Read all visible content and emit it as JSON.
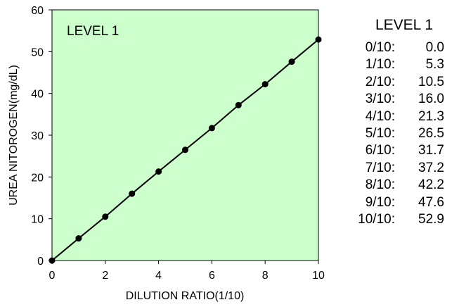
{
  "chart_data": {
    "type": "line",
    "plot_label": "LEVEL 1",
    "xlabel": "DILUTION RATIO(1/10)",
    "ylabel": "UREA NITOROGEN(mg/dL)",
    "xlim": [
      0,
      10
    ],
    "ylim": [
      0,
      60
    ],
    "x_ticks": [
      "0",
      "2",
      "4",
      "6",
      "8",
      "10"
    ],
    "y_ticks": [
      "0",
      "10",
      "20",
      "30",
      "40",
      "50",
      "60"
    ],
    "grid": false,
    "plot_background": "#ccffcc",
    "line_color": "#000000",
    "series": [
      {
        "x": [
          0,
          1,
          2,
          3,
          4,
          5,
          6,
          7,
          8,
          9,
          10
        ],
        "y": [
          0.0,
          5.3,
          10.5,
          16.0,
          21.3,
          26.5,
          31.7,
          37.2,
          42.2,
          47.6,
          52.9
        ]
      }
    ]
  },
  "table": {
    "title": "LEVEL 1",
    "rows": [
      {
        "ratio": "0/10:",
        "value": "0.0"
      },
      {
        "ratio": "1/10:",
        "value": "5.3"
      },
      {
        "ratio": "2/10:",
        "value": "10.5"
      },
      {
        "ratio": "3/10:",
        "value": "16.0"
      },
      {
        "ratio": "4/10:",
        "value": "21.3"
      },
      {
        "ratio": "5/10:",
        "value": "26.5"
      },
      {
        "ratio": "6/10:",
        "value": "31.7"
      },
      {
        "ratio": "7/10:",
        "value": "37.2"
      },
      {
        "ratio": "8/10:",
        "value": "42.2"
      },
      {
        "ratio": "9/10:",
        "value": "47.6"
      },
      {
        "ratio": "10/10:",
        "value": "52.9"
      }
    ]
  }
}
